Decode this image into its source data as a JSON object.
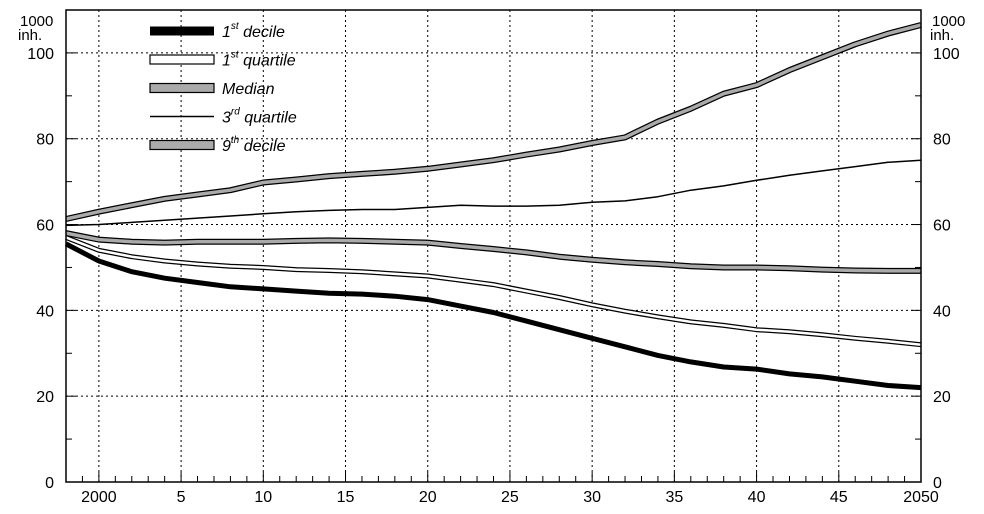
{
  "chart_data": {
    "type": "line",
    "title": "",
    "xlabel": "",
    "ylabel": "",
    "unit_left": [
      "1000",
      "inh."
    ],
    "unit_right": [
      "1000",
      "inh."
    ],
    "xlim": [
      1998,
      2050
    ],
    "ylim": [
      0,
      110
    ],
    "y_ticks": [
      0,
      20,
      40,
      60,
      80,
      100
    ],
    "x_ticks": [
      {
        "year": 2000,
        "label": "2000"
      },
      {
        "year": 2005,
        "label": "5"
      },
      {
        "year": 2010,
        "label": "10"
      },
      {
        "year": 2015,
        "label": "15"
      },
      {
        "year": 2020,
        "label": "20"
      },
      {
        "year": 2025,
        "label": "25"
      },
      {
        "year": 2030,
        "label": "30"
      },
      {
        "year": 2035,
        "label": "35"
      },
      {
        "year": 2040,
        "label": "40"
      },
      {
        "year": 2045,
        "label": "45"
      },
      {
        "year": 2050,
        "label": "2050"
      }
    ],
    "grid": true,
    "legend_position": "top-left",
    "x": [
      1998,
      2000,
      2002,
      2004,
      2006,
      2008,
      2010,
      2012,
      2014,
      2016,
      2018,
      2020,
      2022,
      2024,
      2026,
      2028,
      2030,
      2032,
      2034,
      2036,
      2038,
      2040,
      2042,
      2044,
      2046,
      2048,
      2050
    ],
    "series": [
      {
        "name": "1st decile",
        "label": {
          "pre": "1",
          "sup": "st",
          "post": " decile"
        },
        "style": "thick-black",
        "values": [
          55.5,
          51.5,
          49,
          47.5,
          46.5,
          45.5,
          45,
          44.5,
          44,
          43.8,
          43.3,
          42.5,
          41,
          39.5,
          37.5,
          35.5,
          33.5,
          31.5,
          29.5,
          28,
          26.8,
          26.3,
          25.2,
          24.5,
          23.5,
          22.5,
          22
        ]
      },
      {
        "name": "1st quartile",
        "label": {
          "pre": "1",
          "sup": "st",
          "post": " quartile"
        },
        "style": "double-white",
        "values": [
          57,
          54,
          52.5,
          51.5,
          50.8,
          50.3,
          50,
          49.5,
          49.3,
          49,
          48.5,
          48,
          47,
          46,
          44.5,
          43,
          41.3,
          39.8,
          38.5,
          37.3,
          36.5,
          35.5,
          35,
          34.3,
          33.5,
          32.8,
          32
        ]
      },
      {
        "name": "Median",
        "label": {
          "pre": "Median",
          "sup": "",
          "post": ""
        },
        "style": "double-gray",
        "values": [
          58,
          56.5,
          56,
          55.8,
          56,
          56,
          56,
          56.2,
          56.3,
          56.2,
          56,
          55.8,
          55,
          54.3,
          53.5,
          52.5,
          51.8,
          51.2,
          50.8,
          50.3,
          50,
          50,
          49.8,
          49.5,
          49.3,
          49.2,
          49.2
        ]
      },
      {
        "name": "3rd quartile",
        "label": {
          "pre": "3",
          "sup": "rd",
          "post": " quartile"
        },
        "style": "thin-black",
        "values": [
          59.8,
          60,
          60.5,
          61,
          61.5,
          62,
          62.5,
          63,
          63.3,
          63.5,
          63.5,
          64,
          64.5,
          64.3,
          64.3,
          64.5,
          65.2,
          65.5,
          66.5,
          68,
          69,
          70.3,
          71.5,
          72.5,
          73.5,
          74.5,
          75
        ]
      },
      {
        "name": "9th decile",
        "label": {
          "pre": "9",
          "sup": "th",
          "post": " decile"
        },
        "style": "double-gray",
        "values": [
          61.3,
          63,
          64.5,
          66,
          67,
          68,
          69.8,
          70.5,
          71.3,
          71.8,
          72.3,
          73,
          74,
          75,
          76.3,
          77.5,
          79,
          80.3,
          84,
          87,
          90.5,
          92.5,
          96,
          99,
          102,
          104.5,
          106.5
        ]
      }
    ]
  }
}
